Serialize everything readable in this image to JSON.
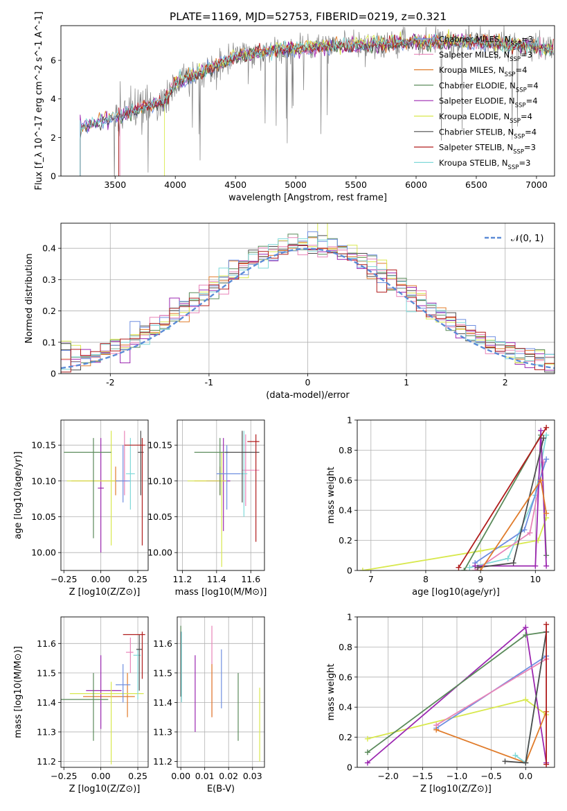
{
  "figure_title": "PLATE=1169, MJD=52753, FIBERID=0219, z=0.321",
  "palette": [
    "#e07b2a",
    "#4c4c4c",
    "#9b27b0",
    "#d8e84d",
    "#5a8a5a",
    "#6e8ee0",
    "#e884b8",
    "#7fd8d8",
    "#b01c1c",
    "#808080"
  ],
  "chart_data": [
    {
      "id": "spectrum",
      "type": "line",
      "title": "PLATE=1169, MJD=52753, FIBERID=0219, z=0.321",
      "xlabel": "wavelength [Angstrom, rest frame]",
      "ylabel": "Flux [f_λ 10^-17 erg cm^-2 s^-1 A^-1]",
      "xlim": [
        3050,
        7150
      ],
      "ylim": [
        0,
        7.8
      ],
      "xticks": [
        3500,
        4000,
        4500,
        5000,
        5500,
        6000,
        6500,
        7000
      ],
      "yticks": [
        0,
        2,
        4,
        6
      ],
      "grid": false,
      "legend_position": "top-right",
      "legend": [
        {
          "label": "Chabrier MILES, N_SSP=3",
          "color": "#6e8ee0"
        },
        {
          "label": "Salpeter MILES, N_SSP=3",
          "color": "#e884b8"
        },
        {
          "label": "Kroupa MILES, N_SSP=4",
          "color": "#e07b2a"
        },
        {
          "label": "Chabrier ELODIE, N_SSP=4",
          "color": "#5a8a5a"
        },
        {
          "label": "Salpeter ELODIE, N_SSP=4",
          "color": "#9b27b0"
        },
        {
          "label": "Kroupa ELODIE, N_SSP=4",
          "color": "#d8e84d"
        },
        {
          "label": "Chabrier STELIB, N_SSP=4",
          "color": "#4c4c4c"
        },
        {
          "label": "Salpeter STELIB, N_SSP=3",
          "color": "#b01c1c"
        },
        {
          "label": "Kroupa STELIB, N_SSP=3",
          "color": "#7fd8d8"
        }
      ],
      "continuum": {
        "x": [
          3200,
          3300,
          3400,
          3500,
          3600,
          3700,
          3800,
          3900,
          4000,
          4100,
          4200,
          4300,
          4400,
          4500,
          4600,
          4800,
          5000,
          5200,
          5400,
          5600,
          5800,
          6000,
          6200,
          6400,
          6600,
          6800,
          7000,
          7100
        ],
        "y": [
          2.5,
          2.7,
          2.9,
          3.0,
          3.3,
          3.5,
          3.7,
          3.8,
          4.8,
          5.1,
          5.3,
          5.6,
          5.9,
          6.2,
          6.3,
          6.5,
          6.6,
          6.7,
          6.75,
          6.8,
          6.9,
          6.95,
          6.95,
          7.0,
          6.9,
          6.8,
          6.7,
          6.6
        ]
      },
      "model_start": [
        3210,
        3540,
        3210,
        3530,
        3210,
        3910,
        3210,
        3530,
        3210
      ]
    },
    {
      "id": "residuals",
      "type": "line",
      "xlabel": "(data-model)/error",
      "ylabel": "Normed distribution",
      "xlim": [
        -2.5,
        2.5
      ],
      "ylim": [
        0,
        0.48
      ],
      "xticks": [
        -2,
        -1,
        0,
        1,
        2
      ],
      "yticks": [
        0.0,
        0.1,
        0.2,
        0.3,
        0.4
      ],
      "grid": true,
      "legend_position": "top-right",
      "gaussian_label": "𝒩(0, 1)",
      "bin_width": 0.1,
      "bins_start": -2.5
    },
    {
      "id": "age_vs_Z",
      "type": "scatter",
      "xlabel": "Z [log10(Z/Z⊙)]",
      "ylabel": "age  [log10(age/yr)]",
      "xlim": [
        -0.27,
        0.32
      ],
      "ylim": [
        9.975,
        10.185
      ],
      "xticks": [
        -0.25,
        0.0,
        0.25
      ],
      "xtick_labels": [
        "−0.25",
        "0.00",
        "0.25"
      ],
      "yticks": [
        10.0,
        10.05,
        10.1,
        10.15
      ],
      "ytick_labels": [
        "10.00",
        "10.05",
        "10.10",
        "10.15"
      ],
      "grid": true,
      "points": [
        {
          "x": 0.1,
          "y": 10.1,
          "xerr": [
            0.3,
            0.05
          ],
          "yerr": [
            0.02,
            0.02
          ],
          "color": "#e07b2a"
        },
        {
          "x": 0.16,
          "y": 10.1,
          "xerr": [
            0.02,
            0.02
          ],
          "yerr": [
            0.02,
            0.07
          ],
          "color": "#e884b8"
        },
        {
          "x": 0.0,
          "y": 10.09,
          "xerr": [
            0.02,
            0.02
          ],
          "yerr": [
            0.09,
            0.07
          ],
          "color": "#9b27b0"
        },
        {
          "x": 0.07,
          "y": 10.1,
          "xerr": [
            0.3,
            0.03
          ],
          "yerr": [
            0.09,
            0.07
          ],
          "color": "#d8e84d"
        },
        {
          "x": -0.05,
          "y": 10.14,
          "xerr": [
            0.2,
            0.12
          ],
          "yerr": [
            0.12,
            0.02
          ],
          "color": "#5a8a5a"
        },
        {
          "x": 0.15,
          "y": 10.1,
          "xerr": [
            0.05,
            0.05
          ],
          "yerr": [
            0.03,
            0.05
          ],
          "color": "#6e8ee0"
        },
        {
          "x": 0.2,
          "y": 10.11,
          "xerr": [
            0.03,
            0.03
          ],
          "yerr": [
            0.05,
            0.05
          ],
          "color": "#7fd8d8"
        },
        {
          "x": 0.27,
          "y": 10.14,
          "xerr": [
            0.02,
            0.02
          ],
          "yerr": [
            0.06,
            0.03
          ],
          "color": "#4c4c4c"
        },
        {
          "x": 0.28,
          "y": 10.15,
          "xerr": [
            0.12,
            0.02
          ],
          "yerr": [
            0.14,
            0.01
          ],
          "color": "#b01c1c"
        }
      ]
    },
    {
      "id": "age_vs_mass",
      "type": "scatter",
      "xlabel": "mass [log10(M/M⊙)]",
      "ylabel": "",
      "xlim": [
        11.17,
        11.68
      ],
      "ylim": [
        9.975,
        10.185
      ],
      "xticks": [
        11.2,
        11.4,
        11.6
      ],
      "yticks": [
        10.0,
        10.05,
        10.1,
        10.15
      ],
      "ytick_labels": [
        "10.00",
        "10.05",
        "10.10",
        "10.15"
      ],
      "grid": true,
      "points": [
        {
          "x": 11.42,
          "y": 10.1,
          "xerr": [
            0.15,
            0.04
          ],
          "yerr": [
            0.02,
            0.02
          ],
          "color": "#e07b2a"
        },
        {
          "x": 11.57,
          "y": 10.115,
          "xerr": [
            0.02,
            0.08
          ],
          "yerr": [
            0.05,
            0.05
          ],
          "color": "#e884b8"
        },
        {
          "x": 11.44,
          "y": 10.1,
          "xerr": [
            0.1,
            0.04
          ],
          "yerr": [
            0.07,
            0.06
          ],
          "color": "#9b27b0"
        },
        {
          "x": 11.43,
          "y": 10.1,
          "xerr": [
            0.2,
            0.03
          ],
          "yerr": [
            0.12,
            0.04
          ],
          "color": "#d8e84d"
        },
        {
          "x": 11.42,
          "y": 10.14,
          "xerr": [
            0.15,
            0.05
          ],
          "yerr": [
            0.06,
            0.02
          ],
          "color": "#5a8a5a"
        },
        {
          "x": 11.46,
          "y": 10.11,
          "xerr": [
            0.06,
            0.08
          ],
          "yerr": [
            0.05,
            0.04
          ],
          "color": "#6e8ee0"
        },
        {
          "x": 11.56,
          "y": 10.11,
          "xerr": [
            0.02,
            0.02
          ],
          "yerr": [
            0.06,
            0.06
          ],
          "color": "#7fd8d8"
        },
        {
          "x": 11.55,
          "y": 10.14,
          "xerr": [
            0.1,
            0.1
          ],
          "yerr": [
            0.07,
            0.03
          ],
          "color": "#4c4c4c"
        },
        {
          "x": 11.63,
          "y": 10.155,
          "xerr": [
            0.05,
            0.02
          ],
          "yerr": [
            0.14,
            0.01
          ],
          "color": "#b01c1c"
        }
      ]
    },
    {
      "id": "massweight_vs_age",
      "type": "line",
      "xlabel": "age  [log10(age/yr)]",
      "ylabel": "mass weight",
      "xlim": [
        6.75,
        10.35
      ],
      "ylim": [
        0,
        1.0
      ],
      "xticks": [
        7,
        8,
        9,
        10
      ],
      "yticks": [
        0.0,
        0.2,
        0.4,
        0.6,
        0.8,
        1.0
      ],
      "grid": true,
      "series": [
        {
          "color": "#d8e84d",
          "x": [
            6.85,
            9.0,
            10.05,
            10.2
          ],
          "y": [
            0.0,
            0.13,
            0.2,
            0.35
          ]
        },
        {
          "color": "#7fd8d8",
          "x": [
            8.8,
            9.5,
            10.0,
            10.2
          ],
          "y": [
            0.02,
            0.08,
            0.5,
            0.9
          ]
        },
        {
          "color": "#e884b8",
          "x": [
            8.9,
            9.9,
            10.15
          ],
          "y": [
            0.0,
            0.25,
            0.72
          ]
        },
        {
          "color": "#6e8ee0",
          "x": [
            8.9,
            9.8,
            10.2
          ],
          "y": [
            0.05,
            0.27,
            0.74
          ]
        },
        {
          "color": "#5a8a5a",
          "x": [
            8.7,
            10.1,
            10.2
          ],
          "y": [
            0.0,
            0.9,
            0.1
          ]
        },
        {
          "color": "#9b27b0",
          "x": [
            8.9,
            10.0,
            10.1,
            10.2
          ],
          "y": [
            0.03,
            0.03,
            0.93,
            0.03
          ]
        },
        {
          "color": "#4c4c4c",
          "x": [
            8.95,
            9.6,
            10.15
          ],
          "y": [
            0.02,
            0.05,
            0.88
          ]
        },
        {
          "color": "#e07b2a",
          "x": [
            9.0,
            10.1,
            10.2
          ],
          "y": [
            0.0,
            0.6,
            0.38
          ]
        },
        {
          "color": "#b01c1c",
          "x": [
            8.6,
            10.2
          ],
          "y": [
            0.02,
            0.95
          ]
        }
      ]
    },
    {
      "id": "mass_vs_Z",
      "type": "scatter",
      "xlabel": "Z [log10(Z/Z⊙)]",
      "ylabel": "mass [log10(M/M⊙)]",
      "xlim": [
        -0.27,
        0.32
      ],
      "ylim": [
        11.18,
        11.69
      ],
      "xticks": [
        -0.25,
        0.0,
        0.25
      ],
      "xtick_labels": [
        "−0.25",
        "0.00",
        "0.25"
      ],
      "yticks": [
        11.2,
        11.3,
        11.4,
        11.5,
        11.6
      ],
      "grid": true,
      "points": [
        {
          "x": 0.18,
          "y": 11.42,
          "xerr": [
            0.3,
            0.05
          ],
          "yerr": [
            0.07,
            0.08
          ],
          "color": "#e07b2a"
        },
        {
          "x": 0.2,
          "y": 11.57,
          "xerr": [
            0.03,
            0.02
          ],
          "yerr": [
            0.07,
            0.05
          ],
          "color": "#e884b8"
        },
        {
          "x": 0.0,
          "y": 11.44,
          "xerr": [
            0.1,
            0.14
          ],
          "yerr": [
            0.13,
            0.12
          ],
          "color": "#9b27b0"
        },
        {
          "x": 0.07,
          "y": 11.43,
          "xerr": [
            0.28,
            0.22
          ],
          "yerr": [
            0.24,
            0.04
          ],
          "color": "#d8e84d"
        },
        {
          "x": -0.05,
          "y": 11.41,
          "xerr": [
            0.22,
            0.1
          ],
          "yerr": [
            0.14,
            0.09
          ],
          "color": "#5a8a5a"
        },
        {
          "x": 0.15,
          "y": 11.46,
          "xerr": [
            0.05,
            0.05
          ],
          "yerr": [
            0.06,
            0.07
          ],
          "color": "#6e8ee0"
        },
        {
          "x": 0.25,
          "y": 11.56,
          "xerr": [
            0.03,
            0.02
          ],
          "yerr": [
            0.15,
            0.02
          ],
          "color": "#7fd8d8"
        },
        {
          "x": 0.26,
          "y": 11.58,
          "xerr": [
            0.02,
            0.02
          ],
          "yerr": [
            0.14,
            0.05
          ],
          "color": "#4c4c4c"
        },
        {
          "x": 0.28,
          "y": 11.63,
          "xerr": [
            0.13,
            0.02
          ],
          "yerr": [
            0.15,
            0.01
          ],
          "color": "#b01c1c"
        }
      ]
    },
    {
      "id": "mass_vs_ebv",
      "type": "scatter",
      "xlabel": "E(B-V)",
      "ylabel": "",
      "xlim": [
        -0.0015,
        0.035
      ],
      "ylim": [
        11.18,
        11.69
      ],
      "xticks": [
        0.0,
        0.01,
        0.02,
        0.03
      ],
      "xtick_labels": [
        "0.00",
        "0.01",
        "0.02",
        "0.03"
      ],
      "yticks": [
        11.2,
        11.3,
        11.4,
        11.5,
        11.6
      ],
      "grid": true,
      "points": [
        {
          "x": 0.0,
          "y": 11.56,
          "xerr": [
            0,
            0
          ],
          "yerr": [
            0.14,
            0.1
          ],
          "color": "#5a8a5a"
        },
        {
          "x": 0.0,
          "y": 11.52,
          "xerr": [
            0,
            0
          ],
          "yerr": [
            0.1,
            0.12
          ],
          "color": "#4c4c4c"
        },
        {
          "x": 0.0003,
          "y": 11.5,
          "xerr": [
            0,
            0
          ],
          "yerr": [
            0.1,
            0.14
          ],
          "color": "#7fd8d8"
        },
        {
          "x": 0.006,
          "y": 11.43,
          "xerr": [
            0,
            0
          ],
          "yerr": [
            0.13,
            0.13
          ],
          "color": "#9b27b0"
        },
        {
          "x": 0.013,
          "y": 11.5,
          "xerr": [
            0,
            0
          ],
          "yerr": [
            0.15,
            0.16
          ],
          "color": "#e884b8"
        },
        {
          "x": 0.013,
          "y": 11.44,
          "xerr": [
            0,
            0
          ],
          "yerr": [
            0.09,
            0.09
          ],
          "color": "#e07b2a"
        },
        {
          "x": 0.017,
          "y": 11.48,
          "xerr": [
            0,
            0
          ],
          "yerr": [
            0.1,
            0.1
          ],
          "color": "#6e8ee0"
        },
        {
          "x": 0.024,
          "y": 11.39,
          "xerr": [
            0,
            0
          ],
          "yerr": [
            0.12,
            0.11
          ],
          "color": "#5a8a5a"
        },
        {
          "x": 0.033,
          "y": 11.32,
          "xerr": [
            0,
            0
          ],
          "yerr": [
            0.12,
            0.13
          ],
          "color": "#d8e84d"
        }
      ]
    },
    {
      "id": "massweight_vs_Z",
      "type": "line",
      "xlabel": "Z [log10(Z/Z⊙)]",
      "ylabel": "mass weight",
      "xlim": [
        -2.45,
        0.42
      ],
      "ylim": [
        0,
        1.0
      ],
      "xticks": [
        -2.0,
        -1.5,
        -1.0,
        -0.5,
        0.0
      ],
      "xtick_labels": [
        "−2.0",
        "−1.5",
        "−1.0",
        "−0.5",
        "0.0"
      ],
      "yticks": [
        0.0,
        0.2,
        0.4,
        0.6,
        0.8,
        1.0
      ],
      "grid": true,
      "series": [
        {
          "color": "#d8e84d",
          "x": [
            -2.3,
            0.0,
            0.3
          ],
          "y": [
            0.19,
            0.45,
            0.35
          ]
        },
        {
          "color": "#9b27b0",
          "x": [
            -2.3,
            0.0,
            0.3
          ],
          "y": [
            0.03,
            0.93,
            0.03
          ]
        },
        {
          "color": "#5a8a5a",
          "x": [
            -2.3,
            0.0,
            0.3
          ],
          "y": [
            0.1,
            0.88,
            0.9
          ]
        },
        {
          "color": "#6e8ee0",
          "x": [
            -1.3,
            0.3
          ],
          "y": [
            0.26,
            0.74
          ]
        },
        {
          "color": "#e884b8",
          "x": [
            -1.3,
            0.3
          ],
          "y": [
            0.28,
            0.72
          ]
        },
        {
          "color": "#e07b2a",
          "x": [
            -1.3,
            0.0,
            0.3
          ],
          "y": [
            0.25,
            0.03,
            0.37
          ]
        },
        {
          "color": "#7fd8d8",
          "x": [
            -0.15,
            0.0,
            0.3
          ],
          "y": [
            0.08,
            0.03,
            0.9
          ]
        },
        {
          "color": "#4c4c4c",
          "x": [
            -0.3,
            0.0,
            0.3
          ],
          "y": [
            0.04,
            0.03,
            0.9
          ]
        },
        {
          "color": "#b01c1c",
          "x": [
            0.3,
            0.3
          ],
          "y": [
            0.02,
            0.95
          ]
        }
      ]
    }
  ]
}
